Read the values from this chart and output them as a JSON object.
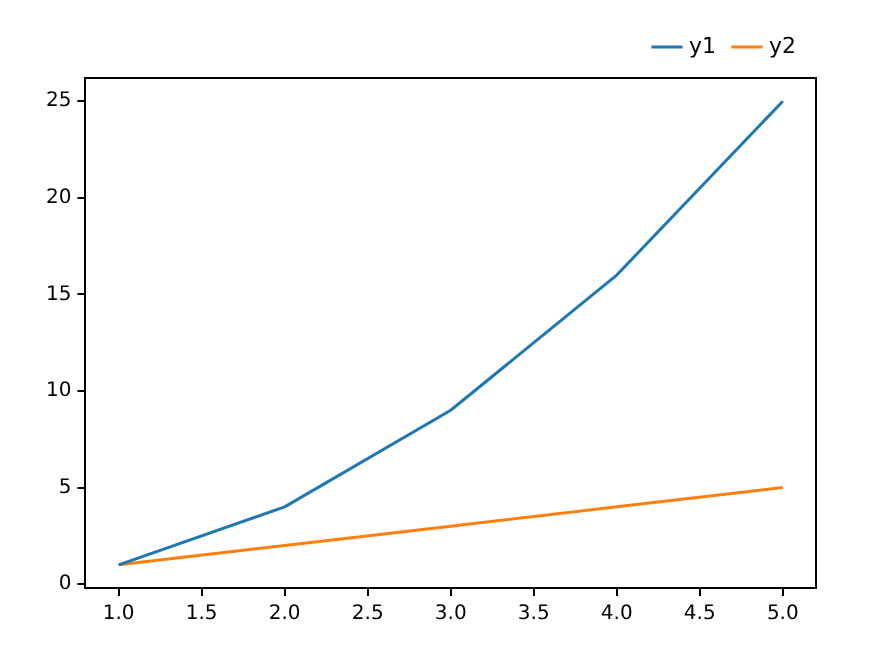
{
  "chart_data": {
    "type": "line",
    "x": [
      1,
      2,
      3,
      4,
      5
    ],
    "series": [
      {
        "name": "y1",
        "color": "#1f77b4",
        "values": [
          1,
          4,
          9,
          16,
          25
        ]
      },
      {
        "name": "y2",
        "color": "#ff7f0e",
        "values": [
          1,
          2,
          3,
          4,
          5
        ]
      }
    ],
    "xlim": [
      0.8,
      5.2
    ],
    "xticks": [
      {
        "value": 1,
        "label": "1.0"
      },
      1.5,
      {
        "value": 2,
        "label": "2.0"
      },
      2.5,
      {
        "value": 3,
        "label": "3.0"
      },
      3.5,
      {
        "value": 4,
        "label": "4.0"
      },
      4.5,
      {
        "value": 5,
        "label": "5.0"
      }
    ],
    "ylim": [
      -0.2,
      26.2
    ],
    "yticks": [
      0,
      5,
      10,
      15,
      20,
      25
    ],
    "grid": false,
    "legend": "top right"
  }
}
